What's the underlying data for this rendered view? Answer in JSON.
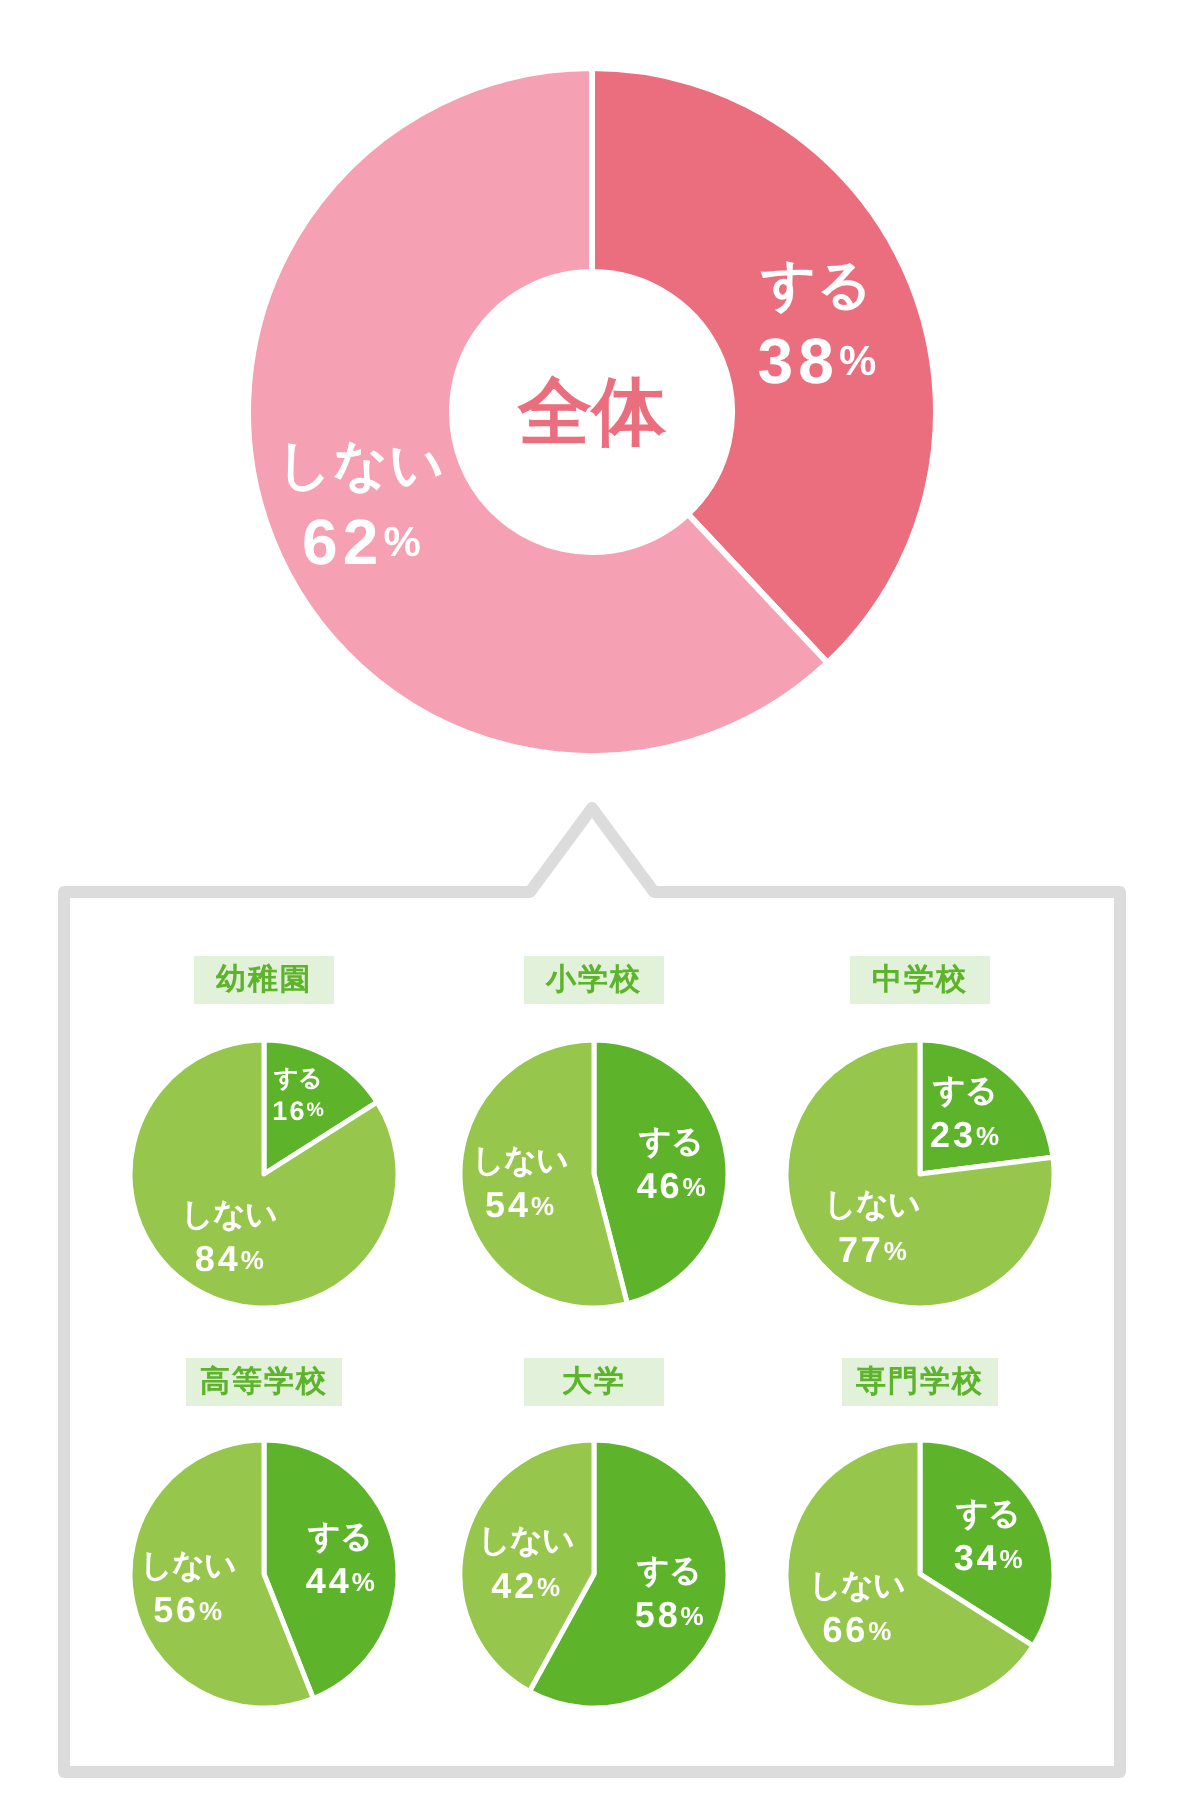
{
  "chart_data": [
    {
      "type": "donut",
      "title": "全体",
      "categories": [
        "する",
        "しない"
      ],
      "values": [
        38,
        62
      ],
      "colors": [
        "#eb6e7e",
        "#f6a1b3"
      ],
      "value_labels": [
        "38%",
        "62%"
      ]
    },
    {
      "type": "pie",
      "title": "幼稚園",
      "categories": [
        "する",
        "しない"
      ],
      "values": [
        16,
        84
      ],
      "colors": [
        "#5db32a",
        "#96c64b"
      ],
      "value_labels": [
        "16%",
        "84%"
      ]
    },
    {
      "type": "pie",
      "title": "小学校",
      "categories": [
        "する",
        "しない"
      ],
      "values": [
        46,
        54
      ],
      "colors": [
        "#5db32a",
        "#96c64b"
      ],
      "value_labels": [
        "46%",
        "54%"
      ]
    },
    {
      "type": "pie",
      "title": "中学校",
      "categories": [
        "する",
        "しない"
      ],
      "values": [
        23,
        77
      ],
      "colors": [
        "#5db32a",
        "#96c64b"
      ],
      "value_labels": [
        "23%",
        "77%"
      ]
    },
    {
      "type": "pie",
      "title": "高等学校",
      "categories": [
        "する",
        "しない"
      ],
      "values": [
        44,
        56
      ],
      "colors": [
        "#5db32a",
        "#96c64b"
      ],
      "value_labels": [
        "44%",
        "56%"
      ]
    },
    {
      "type": "pie",
      "title": "大学",
      "categories": [
        "する",
        "しない"
      ],
      "values": [
        58,
        42
      ],
      "colors": [
        "#5db32a",
        "#96c64b"
      ],
      "value_labels": [
        "58%",
        "42%"
      ]
    },
    {
      "type": "pie",
      "title": "専門学校",
      "categories": [
        "する",
        "しない"
      ],
      "values": [
        34,
        66
      ],
      "colors": [
        "#5db32a",
        "#96c64b"
      ],
      "value_labels": [
        "34%",
        "66%"
      ]
    }
  ]
}
